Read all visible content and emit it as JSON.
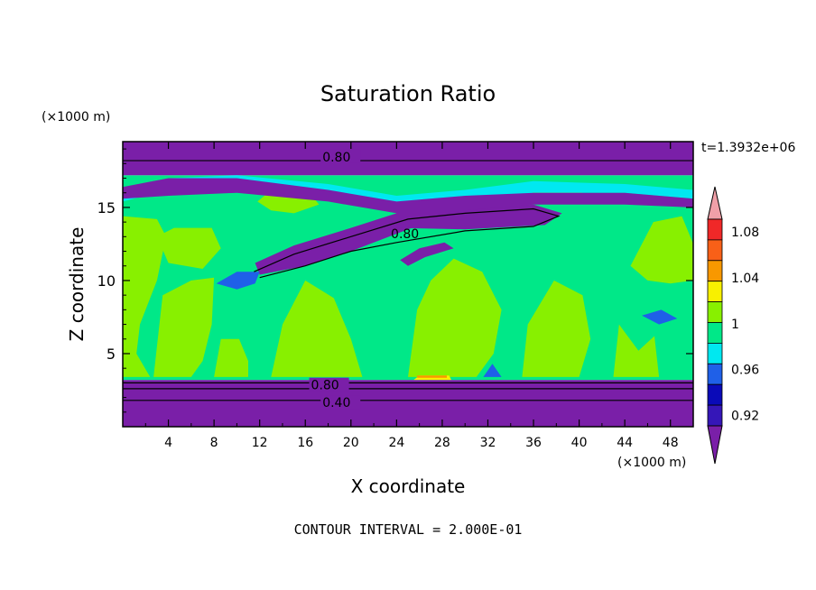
{
  "chart_data": {
    "type": "heatmap",
    "title": "Saturation Ratio",
    "xlabel": "X coordinate",
    "ylabel": "Z coordinate",
    "x_unit": "(×1000 m)",
    "y_unit": "(×1000 m)",
    "time_label": "t=1.3932e+06",
    "footer": "CONTOUR INTERVAL = 2.000E-01",
    "xlim": [
      0,
      50
    ],
    "ylim": [
      0,
      19.5
    ],
    "x_ticks": [
      "4",
      "8",
      "12",
      "16",
      "20",
      "24",
      "28",
      "32",
      "36",
      "40",
      "44",
      "48"
    ],
    "y_ticks": [
      "5",
      "10",
      "15"
    ],
    "contour_labels": [
      "0.80",
      "0.80",
      "0.80",
      "0.40"
    ],
    "colorbar": {
      "labels": [
        "0.92",
        "0.96",
        "1",
        "1.04",
        "1.08"
      ],
      "levels": [
        0.92,
        0.94,
        0.96,
        0.98,
        1.0,
        1.02,
        1.04,
        1.06,
        1.08,
        1.1
      ],
      "colors": [
        "#7a1fa8",
        "#3516b8",
        "#0a0ab8",
        "#1f60e8",
        "#00e8f0",
        "#00e888",
        "#88f000",
        "#f8f000",
        "#f89800",
        "#f86018",
        "#f02828",
        "#f0a0a8"
      ]
    },
    "bands": [
      {
        "z0": 0.0,
        "z1": 3.2,
        "color": "#7a1fa8"
      },
      {
        "z0": 3.2,
        "z1": 17.2,
        "color": "#00e888"
      },
      {
        "z0": 17.2,
        "z1": 19.5,
        "color": "#7a1fa8"
      }
    ],
    "contour_lines_z": [
      1.8,
      2.6,
      3.0,
      18.2
    ]
  }
}
